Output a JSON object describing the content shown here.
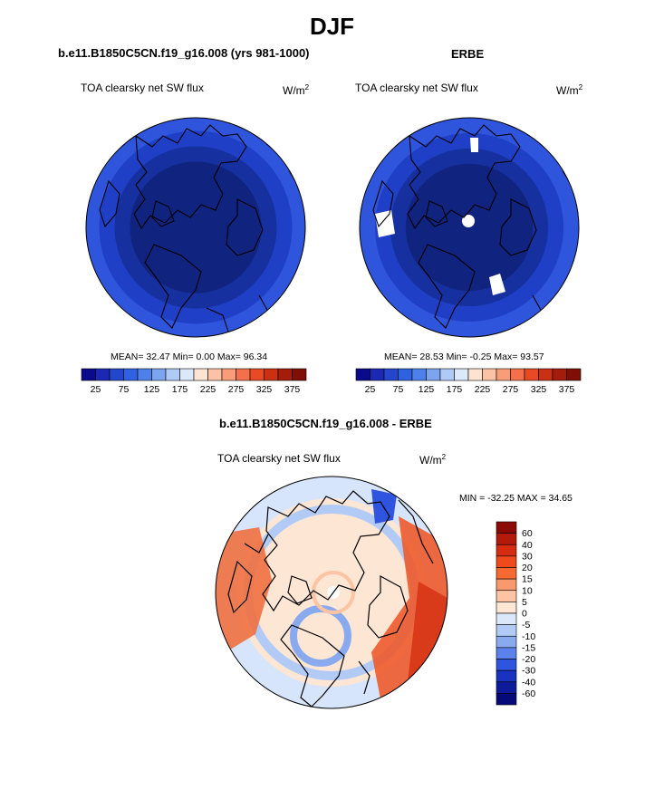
{
  "page_title": "DJF",
  "panels": [
    {
      "id": "model",
      "title": "b.e11.B1850C5CN.f19_g16.008 (yrs 981-1000)",
      "variable": "TOA clearsky net SW flux",
      "units_base": "W/m",
      "units_exp": "2",
      "stats": "MEAN=  32.47  Min=   0.00  Max=  96.34"
    },
    {
      "id": "obs",
      "title": "ERBE",
      "variable": "TOA clearsky net SW flux",
      "units_base": "W/m",
      "units_exp": "2",
      "stats": "MEAN=  28.53  Min=  -0.25  Max=  93.57"
    },
    {
      "id": "diff",
      "title": "b.e11.B1850C5CN.f19_g16.008 - ERBE",
      "variable": "TOA clearsky net SW flux",
      "units_base": "W/m",
      "units_exp": "2",
      "stats": "MIN = -32.25 MAX =  34.65"
    }
  ],
  "chart_data": [
    {
      "type": "heatmap",
      "projection": "polar-stereographic-north",
      "title": "b.e11.B1850C5CN.f19_g16.008 (yrs 981-1000)",
      "variable": "TOA clearsky net SW flux",
      "mean": 32.47,
      "min": 0.0,
      "max": 96.34,
      "colorbar_orientation": "horizontal",
      "colorbar_labels": [
        "25",
        "75",
        "125",
        "175",
        "225",
        "275",
        "325",
        "375"
      ],
      "colorbar_colors": [
        "#0a0a8c",
        "#1a28b4",
        "#2346cc",
        "#2f62e0",
        "#4d80ea",
        "#7da4ee",
        "#aecaf5",
        "#dce9fa",
        "#fde3d2",
        "#fcc2a6",
        "#f99c78",
        "#f4704a",
        "#e84a24",
        "#c93014",
        "#a31c0c",
        "#7e0e06"
      ],
      "rings": [
        {
          "radius_fraction": 1.0,
          "color": "#2e55dc"
        },
        {
          "radius_fraction": 0.88,
          "color": "#1f40c6"
        },
        {
          "radius_fraction": 0.74,
          "color": "#16319f"
        },
        {
          "radius_fraction": 0.6,
          "color": "#10237f"
        }
      ]
    },
    {
      "type": "heatmap",
      "projection": "polar-stereographic-north",
      "title": "ERBE",
      "variable": "TOA clearsky net SW flux",
      "mean": 28.53,
      "min": -0.25,
      "max": 93.57,
      "colorbar_orientation": "horizontal",
      "colorbar_labels": [
        "25",
        "75",
        "125",
        "175",
        "225",
        "275",
        "325",
        "375"
      ],
      "colorbar_colors": [
        "#0a0a8c",
        "#1a28b4",
        "#2346cc",
        "#2f62e0",
        "#4d80ea",
        "#7da4ee",
        "#aecaf5",
        "#dce9fa",
        "#fde3d2",
        "#fcc2a6",
        "#f99c78",
        "#f4704a",
        "#e84a24",
        "#c93014",
        "#a31c0c",
        "#7e0e06"
      ],
      "rings": [
        {
          "radius_fraction": 1.0,
          "color": "#2e55dc"
        },
        {
          "radius_fraction": 0.86,
          "color": "#1f40c6"
        },
        {
          "radius_fraction": 0.72,
          "color": "#16319f"
        },
        {
          "radius_fraction": 0.58,
          "color": "#10237f"
        }
      ]
    },
    {
      "type": "heatmap",
      "projection": "polar-stereographic-north",
      "title": "b.e11.B1850C5CN.f19_g16.008 - ERBE",
      "variable": "TOA clearsky net SW flux",
      "min": -32.25,
      "max": 34.65,
      "colorbar_orientation": "vertical",
      "colorbar_labels": [
        "60",
        "40",
        "30",
        "20",
        "15",
        "10",
        "5",
        "0",
        "-5",
        "-10",
        "-15",
        "-20",
        "-30",
        "-40",
        "-60"
      ],
      "colorbar_colors": [
        "#8c0a05",
        "#b31a0a",
        "#d62d10",
        "#ee4a1c",
        "#f66a32",
        "#f99a6e",
        "#fcc4a3",
        "#fde6d4",
        "#dbe8fb",
        "#b2cbf6",
        "#8aaaf0",
        "#5a82ea",
        "#2f55e0",
        "#1a32c0",
        "#0d1a9a",
        "#050a78"
      ]
    }
  ]
}
